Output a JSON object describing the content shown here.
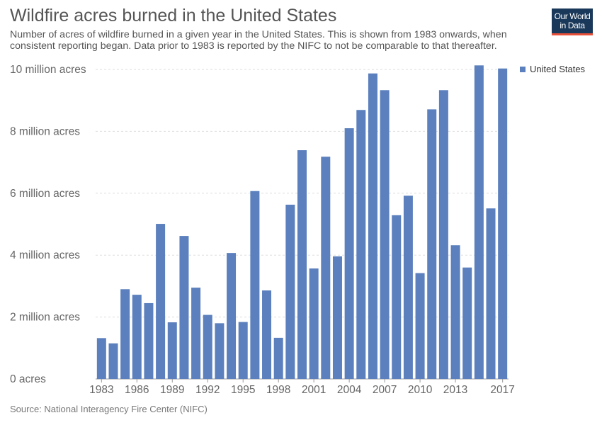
{
  "header": {
    "title": "Wildfire acres burned in the United States",
    "subtitle": "Number of acres of wildfire burned in a given year in the United States. This is shown from 1983 onwards, when consistent reporting began. Data prior to 1983 is reported by the NIFC to not be comparable to that thereafter."
  },
  "logo": {
    "line1": "Our World",
    "line2": "in Data"
  },
  "source": "Source: National Interagency Fire Center (NIFC)",
  "colors": {
    "bar": "#5b80bd",
    "grid": "#dddddd",
    "logo_bg": "#1a3859",
    "logo_accent": "#e8503a"
  },
  "chart_data": {
    "type": "bar",
    "title": "Wildfire acres burned in the United States",
    "xlabel": "",
    "ylabel": "",
    "ylim": [
      0,
      10000000
    ],
    "yticks": [
      0,
      2000000,
      4000000,
      6000000,
      8000000,
      10000000
    ],
    "ytick_labels": [
      "0 acres",
      "2 million acres",
      "4 million acres",
      "6 million acres",
      "8 million acres",
      "10 million acres"
    ],
    "xtick_labels": [
      "1983",
      "1986",
      "1989",
      "1992",
      "1995",
      "1998",
      "2001",
      "2004",
      "2007",
      "2010",
      "2013",
      "2017"
    ],
    "grid": true,
    "legend_position": "top-right",
    "categories": [
      1983,
      1984,
      1985,
      1986,
      1987,
      1988,
      1989,
      1990,
      1991,
      1992,
      1993,
      1994,
      1995,
      1996,
      1997,
      1998,
      1999,
      2000,
      2001,
      2002,
      2003,
      2004,
      2005,
      2006,
      2007,
      2008,
      2009,
      2010,
      2011,
      2012,
      2013,
      2014,
      2015,
      2016,
      2017
    ],
    "series": [
      {
        "name": "United States",
        "values": [
          1320000,
          1150000,
          2900000,
          2720000,
          2450000,
          5010000,
          1830000,
          4620000,
          2950000,
          2070000,
          1800000,
          4070000,
          1840000,
          6070000,
          2860000,
          1330000,
          5630000,
          7390000,
          3570000,
          7180000,
          3960000,
          8100000,
          8690000,
          9870000,
          9330000,
          5290000,
          5920000,
          3420000,
          8710000,
          9330000,
          4320000,
          3600000,
          10130000,
          5510000,
          10030000
        ]
      }
    ]
  }
}
